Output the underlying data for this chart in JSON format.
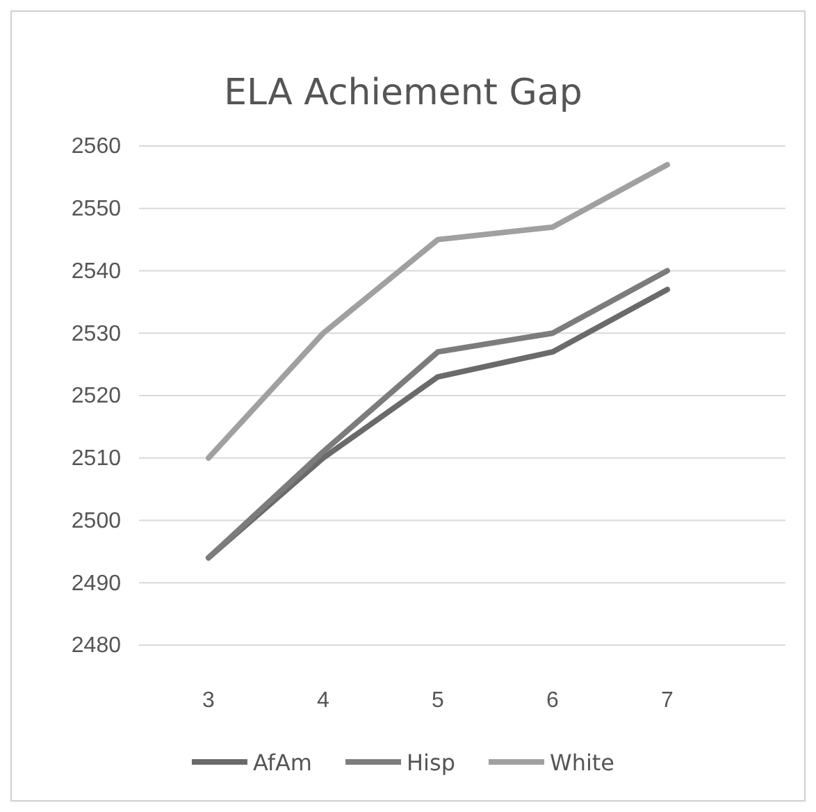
{
  "chart_data": {
    "type": "line",
    "title": "ELA Achiement Gap",
    "categories": [
      "3",
      "4",
      "5",
      "6",
      "7"
    ],
    "series": [
      {
        "name": "AfAm",
        "color": "#6a6a6a",
        "values": [
          2494,
          2510,
          2523,
          2527,
          2537
        ]
      },
      {
        "name": "Hisp",
        "color": "#7c7c7c",
        "values": [
          2494,
          2511,
          2527,
          2530,
          2540
        ]
      },
      {
        "name": "White",
        "color": "#a0a0a0",
        "values": [
          2510,
          2530,
          2545,
          2547,
          2557
        ]
      }
    ],
    "ylim": [
      2480,
      2560
    ],
    "yticks": [
      2480,
      2490,
      2500,
      2510,
      2520,
      2530,
      2540,
      2550,
      2560
    ],
    "grid": "y",
    "legend": "bottom",
    "marker": "none",
    "line_style": "solid"
  }
}
